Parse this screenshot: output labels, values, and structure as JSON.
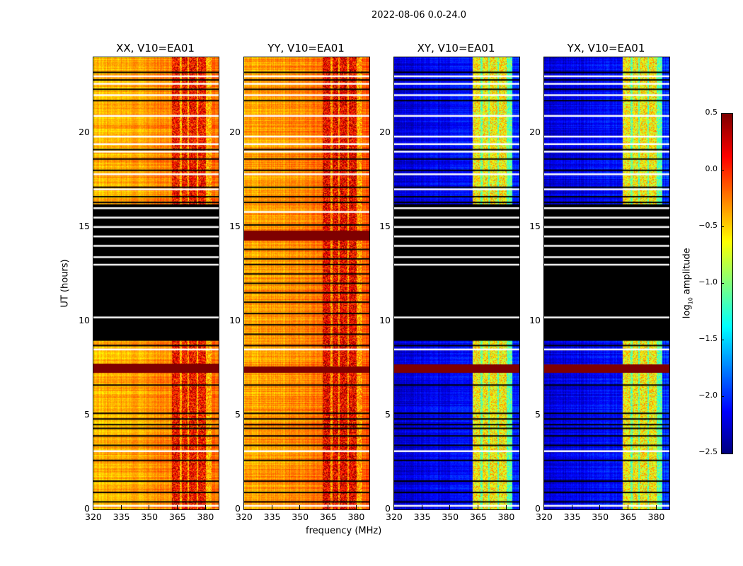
{
  "chart_data": {
    "type": "heatmap",
    "suptitle": "2022-08-06 0.0-24.0",
    "xlabel": "frequency (MHz)",
    "ylabel": "UT (hours)",
    "xlim": [
      320,
      387
    ],
    "ylim": [
      0,
      24
    ],
    "xticks": [
      "320",
      "335",
      "350",
      "365",
      "380"
    ],
    "xtick_values": [
      320,
      335,
      350,
      365,
      380
    ],
    "yticks": [
      "0",
      "5",
      "10",
      "15",
      "20"
    ],
    "ytick_values": [
      0,
      5,
      10,
      15,
      20
    ],
    "colorbar": {
      "label": "log10 amplitude",
      "label_main": "log",
      "label_sub": "10",
      "label_rest": " amplitude",
      "range": [
        -2.5,
        0.5
      ],
      "ticks": [
        "0.5",
        "0.0",
        "−0.5",
        "−1.0",
        "−1.5",
        "−2.0",
        "−2.5"
      ],
      "tick_values": [
        0.5,
        0,
        -0.5,
        -1,
        -1.5,
        -2,
        -2.5
      ],
      "cmap": "jet"
    },
    "rfi_band_mhz": [
      362,
      383
    ],
    "rfi_columns_mhz": [
      [
        362,
        366
      ],
      [
        367,
        370
      ],
      [
        371,
        375
      ],
      [
        376,
        380
      ]
    ],
    "panels": [
      {
        "title": "XX, V10=EA01",
        "base_low": -0.45,
        "base_high": 0.1,
        "flag_block": [
          8.95,
          16.2
        ],
        "saturated_bands": [
          [
            7.25,
            7.75
          ]
        ],
        "white_lines": [
          0.2,
          3.1,
          8.5,
          10.2,
          13.0,
          13.4,
          14.0,
          14.5,
          15.0,
          15.5,
          16.0,
          17.0,
          17.8,
          19.0,
          19.4,
          19.8,
          20.9,
          22.0,
          22.6,
          23.0
        ],
        "black_lines": [
          0.4,
          0.9,
          1.5,
          2.6,
          3.4,
          3.9,
          4.3,
          4.5,
          4.8,
          5.1,
          6.6,
          8.7,
          16.3,
          16.6,
          17.1,
          18.0,
          18.6,
          19.1,
          21.7,
          22.3,
          22.8,
          23.2
        ]
      },
      {
        "title": "YY, V10=EA01",
        "base_low": -0.4,
        "base_high": 0.15,
        "flag_block": null,
        "saturated_bands": [
          [
            7.25,
            7.6
          ],
          [
            14.3,
            14.8
          ]
        ],
        "white_lines": [
          0.2,
          3.1,
          8.5,
          15.8,
          17.8,
          19.0,
          19.4,
          19.8,
          20.9,
          22.0,
          22.6,
          23.0
        ],
        "black_lines": [
          0.4,
          0.9,
          1.5,
          2.6,
          3.4,
          3.9,
          4.3,
          4.5,
          4.8,
          5.1,
          6.6,
          8.7,
          9.3,
          9.8,
          10.4,
          11.0,
          11.5,
          12.0,
          12.5,
          13.0,
          13.3,
          13.8,
          15.1,
          16.3,
          16.6,
          17.1,
          18.0,
          18.6,
          19.1,
          21.7,
          22.3,
          22.8,
          23.2
        ]
      },
      {
        "title": "XY, V10=EA01",
        "base_low": -2.25,
        "base_high": -0.6,
        "flag_block": [
          8.95,
          16.2
        ],
        "saturated_bands": [
          [
            7.25,
            7.7
          ]
        ],
        "white_lines": [
          0.2,
          3.1,
          8.5,
          10.2,
          13.0,
          13.4,
          14.0,
          14.5,
          15.0,
          15.5,
          16.0,
          17.0,
          17.8,
          19.0,
          19.4,
          19.8,
          20.9,
          22.0,
          22.6,
          23.0
        ],
        "black_lines": [
          0.4,
          0.9,
          1.5,
          2.6,
          3.4,
          3.9,
          4.3,
          4.5,
          4.8,
          5.1,
          6.6,
          8.7,
          16.3,
          16.6,
          17.1,
          18.0,
          18.6,
          19.1,
          21.7,
          22.3,
          22.8,
          23.2
        ]
      },
      {
        "title": "YX, V10=EA01",
        "base_low": -2.25,
        "base_high": -0.6,
        "flag_block": [
          8.95,
          16.2
        ],
        "saturated_bands": [
          [
            7.25,
            7.7
          ]
        ],
        "white_lines": [
          0.2,
          3.1,
          8.5,
          10.2,
          13.0,
          13.4,
          14.0,
          14.5,
          15.0,
          15.5,
          16.0,
          17.0,
          17.8,
          19.0,
          19.4,
          19.8,
          20.9,
          22.0,
          22.6,
          23.0
        ],
        "black_lines": [
          0.4,
          0.9,
          1.5,
          2.6,
          3.4,
          3.9,
          4.3,
          4.5,
          4.8,
          5.1,
          6.6,
          8.7,
          16.3,
          16.6,
          17.1,
          18.0,
          18.6,
          19.1,
          21.7,
          22.3,
          22.8,
          23.2
        ]
      }
    ]
  }
}
